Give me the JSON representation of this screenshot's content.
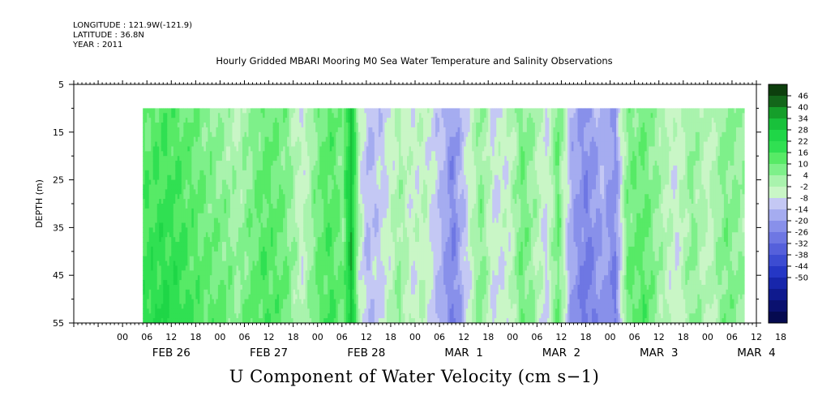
{
  "header": {
    "longitude": "LONGITUDE : 121.9W(-121.9)",
    "latitude": "LATITUDE : 36.8N",
    "year": "YEAR : 2011"
  },
  "chart_data": {
    "type": "heatmap",
    "title": "Hourly Gridded MBARI Mooring M0 Sea Water Temperature and Salinity Observations",
    "xlabel": "U Component of Water Velocity (cm s−1)",
    "ylabel": "DEPTH (m)",
    "y_ticks": [
      5,
      15,
      25,
      35,
      45,
      55
    ],
    "ylim": [
      5,
      55
    ],
    "y_reversed": true,
    "x_range_hours": [
      -12,
      156
    ],
    "data_start_hour": 5,
    "data_end_hour": 153,
    "data_depth_range": [
      10,
      55
    ],
    "x_hour_ticks": [
      "00",
      "06",
      "12",
      "18",
      "00",
      "06",
      "12",
      "18",
      "00",
      "06",
      "12",
      "18",
      "00",
      "06",
      "12",
      "18",
      "00",
      "06",
      "12",
      "18",
      "00",
      "06",
      "12",
      "18",
      "00",
      "06",
      "12",
      "18"
    ],
    "x_day_labels": [
      "FEB 26",
      "FEB 27",
      "FEB 28",
      "MAR  1",
      "MAR  2",
      "MAR  3",
      "MAR  4"
    ],
    "colorbar_levels": [
      "46",
      "40",
      "34",
      "28",
      "22",
      "16",
      "10",
      "4",
      "-2",
      "-8",
      "-14",
      "-20",
      "-26",
      "-32",
      "-38",
      "-44",
      "-50"
    ],
    "colorbar_colors": [
      "#0d3f0d",
      "#13661a",
      "#159e2a",
      "#18c13b",
      "#1fd647",
      "#30e052",
      "#57ea66",
      "#7ef08a",
      "#a9f3ad",
      "#c9f6c6",
      "#c4c8f4",
      "#a5acf0",
      "#8890ea",
      "#6e77e3",
      "#5560db",
      "#3c4cd2",
      "#2537c5",
      "#1726ab",
      "#0f1a8e",
      "#0a116f",
      "#050a50"
    ],
    "column_profile": [
      {
        "h": 5,
        "s": 10,
        "d": 10
      },
      {
        "h": 10,
        "s": 14,
        "d": 8
      },
      {
        "h": 14,
        "s": 12,
        "d": 8
      },
      {
        "h": 18,
        "s": 8,
        "d": 6
      },
      {
        "h": 22,
        "s": 4,
        "d": 8
      },
      {
        "h": 25,
        "s": 1,
        "d": 10
      },
      {
        "h": 28,
        "s": -3,
        "d": 8
      },
      {
        "h": 31,
        "s": 3,
        "d": 8
      },
      {
        "h": 35,
        "s": 10,
        "d": 6
      },
      {
        "h": 40,
        "s": 6,
        "d": 4
      },
      {
        "h": 44,
        "s": -8,
        "d": 4
      },
      {
        "h": 48,
        "s": 8,
        "d": 4
      },
      {
        "h": 51,
        "s": 12,
        "d": 4
      },
      {
        "h": 54,
        "s": 6,
        "d": 2
      },
      {
        "h": 56,
        "s": 32,
        "d": 0
      },
      {
        "h": 58,
        "s": -2,
        "d": -2
      },
      {
        "h": 60,
        "s": -14,
        "d": 0
      },
      {
        "h": 64,
        "s": -10,
        "d": 2
      },
      {
        "h": 68,
        "s": -2,
        "d": 8
      },
      {
        "h": 71,
        "s": -6,
        "d": 0
      },
      {
        "h": 74,
        "s": -4,
        "d": 2
      },
      {
        "h": 78,
        "s": -12,
        "d": -4
      },
      {
        "h": 81,
        "s": -22,
        "d": -6
      },
      {
        "h": 84,
        "s": -10,
        "d": -2
      },
      {
        "h": 88,
        "s": 4,
        "d": 4
      },
      {
        "h": 91,
        "s": -8,
        "d": 0
      },
      {
        "h": 95,
        "s": -4,
        "d": -2
      },
      {
        "h": 98,
        "s": 8,
        "d": 2
      },
      {
        "h": 101,
        "s": 2,
        "d": 0
      },
      {
        "h": 104,
        "s": -8,
        "d": -2
      },
      {
        "h": 107,
        "s": 10,
        "d": 0
      },
      {
        "h": 110,
        "s": -14,
        "d": -6
      },
      {
        "h": 114,
        "s": -22,
        "d": -8
      },
      {
        "h": 118,
        "s": -14,
        "d": -6
      },
      {
        "h": 121,
        "s": -20,
        "d": -8
      },
      {
        "h": 124,
        "s": 6,
        "d": 4
      },
      {
        "h": 128,
        "s": 8,
        "d": 6
      },
      {
        "h": 132,
        "s": 2,
        "d": 0
      },
      {
        "h": 136,
        "s": -6,
        "d": -2
      },
      {
        "h": 140,
        "s": 4,
        "d": 2
      },
      {
        "h": 144,
        "s": -4,
        "d": 0
      },
      {
        "h": 148,
        "s": 6,
        "d": 2
      },
      {
        "h": 153,
        "s": 2,
        "d": 0
      }
    ]
  }
}
